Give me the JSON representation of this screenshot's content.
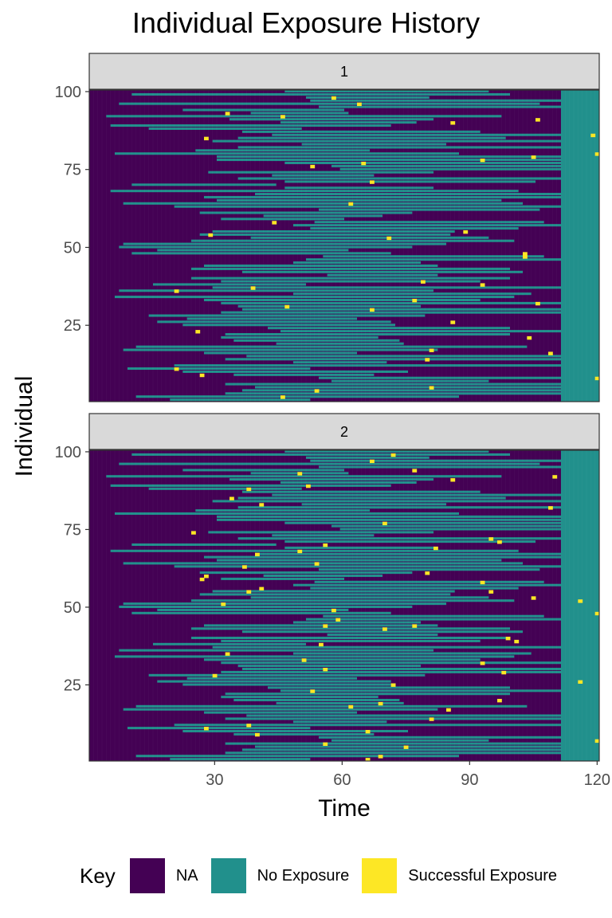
{
  "chart_data": {
    "type": "heatmap",
    "title": "Individual Exposure History",
    "xlabel": "Time",
    "ylabel": "Individual",
    "x_ticks": [
      30,
      60,
      90,
      120
    ],
    "y_ticks": [
      25,
      50,
      75,
      100
    ],
    "xlim": [
      1,
      120
    ],
    "ylim": [
      1,
      100
    ],
    "legend": {
      "title": "Key",
      "position": "bottom",
      "entries": [
        {
          "label": "NA",
          "color": "#440154"
        },
        {
          "label": "No Exposure",
          "color": "#21908C"
        },
        {
          "label": "Successful Exposure",
          "color": "#FDE725"
        }
      ]
    },
    "panels": [
      {
        "strip_label": "1",
        "successful_exposures": [
          {
            "time": 58,
            "individual": 98
          },
          {
            "time": 64,
            "individual": 96
          },
          {
            "time": 33,
            "individual": 93
          },
          {
            "time": 46,
            "individual": 92
          },
          {
            "time": 86,
            "individual": 90
          },
          {
            "time": 106,
            "individual": 91
          },
          {
            "time": 119,
            "individual": 86
          },
          {
            "time": 28,
            "individual": 85
          },
          {
            "time": 120,
            "individual": 80
          },
          {
            "time": 93,
            "individual": 78
          },
          {
            "time": 105,
            "individual": 79
          },
          {
            "time": 53,
            "individual": 76
          },
          {
            "time": 65,
            "individual": 77
          },
          {
            "time": 67,
            "individual": 71
          },
          {
            "time": 62,
            "individual": 64
          },
          {
            "time": 44,
            "individual": 58
          },
          {
            "time": 29,
            "individual": 54
          },
          {
            "time": 71,
            "individual": 53
          },
          {
            "time": 89,
            "individual": 55
          },
          {
            "time": 103,
            "individual": 48
          },
          {
            "time": 103,
            "individual": 47
          },
          {
            "time": 79,
            "individual": 39
          },
          {
            "time": 39,
            "individual": 37
          },
          {
            "time": 93,
            "individual": 38
          },
          {
            "time": 21,
            "individual": 36
          },
          {
            "time": 77,
            "individual": 33
          },
          {
            "time": 106,
            "individual": 32
          },
          {
            "time": 47,
            "individual": 31
          },
          {
            "time": 67,
            "individual": 30
          },
          {
            "time": 86,
            "individual": 26
          },
          {
            "time": 26,
            "individual": 23
          },
          {
            "time": 104,
            "individual": 21
          },
          {
            "time": 81,
            "individual": 17
          },
          {
            "time": 109,
            "individual": 16
          },
          {
            "time": 80,
            "individual": 14
          },
          {
            "time": 21,
            "individual": 11
          },
          {
            "time": 27,
            "individual": 9
          },
          {
            "time": 120,
            "individual": 8
          },
          {
            "time": 81,
            "individual": 5
          },
          {
            "time": 54,
            "individual": 4
          },
          {
            "time": 46,
            "individual": 2
          }
        ]
      },
      {
        "strip_label": "2",
        "successful_exposures": [
          {
            "time": 72,
            "individual": 99
          },
          {
            "time": 67,
            "individual": 97
          },
          {
            "time": 77,
            "individual": 94
          },
          {
            "time": 50,
            "individual": 93
          },
          {
            "time": 86,
            "individual": 91
          },
          {
            "time": 110,
            "individual": 92
          },
          {
            "time": 38,
            "individual": 88
          },
          {
            "time": 52,
            "individual": 89
          },
          {
            "time": 34,
            "individual": 85
          },
          {
            "time": 41,
            "individual": 83
          },
          {
            "time": 109,
            "individual": 82
          },
          {
            "time": 70,
            "individual": 77
          },
          {
            "time": 25,
            "individual": 74
          },
          {
            "time": 95,
            "individual": 72
          },
          {
            "time": 97,
            "individual": 71
          },
          {
            "time": 56,
            "individual": 70
          },
          {
            "time": 82,
            "individual": 69
          },
          {
            "time": 50,
            "individual": 68
          },
          {
            "time": 40,
            "individual": 67
          },
          {
            "time": 54,
            "individual": 64
          },
          {
            "time": 37,
            "individual": 63
          },
          {
            "time": 80,
            "individual": 61
          },
          {
            "time": 28,
            "individual": 60
          },
          {
            "time": 27,
            "individual": 59
          },
          {
            "time": 93,
            "individual": 58
          },
          {
            "time": 41,
            "individual": 56
          },
          {
            "time": 38,
            "individual": 55
          },
          {
            "time": 95,
            "individual": 55
          },
          {
            "time": 105,
            "individual": 53
          },
          {
            "time": 116,
            "individual": 52
          },
          {
            "time": 32,
            "individual": 51
          },
          {
            "time": 120,
            "individual": 48
          },
          {
            "time": 58,
            "individual": 49
          },
          {
            "time": 59,
            "individual": 46
          },
          {
            "time": 56,
            "individual": 44
          },
          {
            "time": 70,
            "individual": 43
          },
          {
            "time": 77,
            "individual": 44
          },
          {
            "time": 99,
            "individual": 40
          },
          {
            "time": 101,
            "individual": 39
          },
          {
            "time": 55,
            "individual": 38
          },
          {
            "time": 33,
            "individual": 35
          },
          {
            "time": 51,
            "individual": 33
          },
          {
            "time": 93,
            "individual": 32
          },
          {
            "time": 56,
            "individual": 30
          },
          {
            "time": 98,
            "individual": 29
          },
          {
            "time": 30,
            "individual": 28
          },
          {
            "time": 116,
            "individual": 26
          },
          {
            "time": 72,
            "individual": 25
          },
          {
            "time": 53,
            "individual": 23
          },
          {
            "time": 97,
            "individual": 20
          },
          {
            "time": 69,
            "individual": 19
          },
          {
            "time": 62,
            "individual": 18
          },
          {
            "time": 85,
            "individual": 17
          },
          {
            "time": 81,
            "individual": 14
          },
          {
            "time": 28,
            "individual": 11
          },
          {
            "time": 38,
            "individual": 12
          },
          {
            "time": 40,
            "individual": 9
          },
          {
            "time": 66,
            "individual": 10
          },
          {
            "time": 56,
            "individual": 6
          },
          {
            "time": 120,
            "individual": 7
          },
          {
            "time": 75,
            "individual": 5
          },
          {
            "time": 69,
            "individual": 2
          },
          {
            "time": 66,
            "individual": 1
          }
        ]
      }
    ]
  }
}
